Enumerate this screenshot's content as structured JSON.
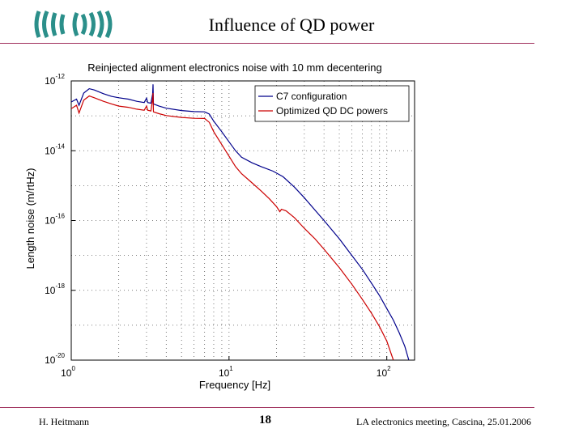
{
  "slide": {
    "title": "Influence of QD power",
    "footer_left": "H. Heitmann",
    "footer_page": "18",
    "footer_right": "LA electronics meeting, Cascina, 25.01.2006"
  },
  "logo": {
    "name": "ego-virgo-logo-icon",
    "color": "#2b8f8a"
  },
  "chart_data": {
    "type": "line",
    "title": "Reinjected alignment electronics noise with 10 mm decentering",
    "xlabel": "Frequency [Hz]",
    "ylabel": "Length noise (m/rtHz)",
    "xscale": "log",
    "yscale": "log",
    "xlim": [
      1,
      150
    ],
    "ylim": [
      1e-20,
      1e-12
    ],
    "xticks": [
      {
        "value": 1,
        "base": "10",
        "exp": "0"
      },
      {
        "value": 10,
        "base": "10",
        "exp": "1"
      },
      {
        "value": 100,
        "base": "10",
        "exp": "2"
      }
    ],
    "yticks": [
      {
        "value": 1e-12,
        "base": "10",
        "exp": "-12"
      },
      {
        "value": 1e-14,
        "base": "10",
        "exp": "-14"
      },
      {
        "value": 1e-16,
        "base": "10",
        "exp": "-16"
      },
      {
        "value": 1e-18,
        "base": "10",
        "exp": "-18"
      },
      {
        "value": 1e-20,
        "base": "10",
        "exp": "-20"
      }
    ],
    "grid": true,
    "legend_position": "top-right",
    "series": [
      {
        "name": "C7 configuration",
        "color": "#00008b",
        "points": [
          [
            1.0,
            2.5e-13
          ],
          [
            1.08,
            3e-13
          ],
          [
            1.12,
            2e-13
          ],
          [
            1.2,
            4.5e-13
          ],
          [
            1.3,
            6e-13
          ],
          [
            1.4,
            5.5e-13
          ],
          [
            1.6,
            4.3e-13
          ],
          [
            1.8,
            3.6e-13
          ],
          [
            2.0,
            3.3e-13
          ],
          [
            2.3,
            3e-13
          ],
          [
            2.6,
            2.6e-13
          ],
          [
            2.9,
            2.4e-13
          ],
          [
            3.0,
            3.2e-13
          ],
          [
            3.05,
            2.4e-13
          ],
          [
            3.2,
            2.3e-13
          ],
          [
            3.28,
            4.2e-13
          ],
          [
            3.3,
            8e-13
          ],
          [
            3.32,
            2.2e-13
          ],
          [
            3.6,
            1.9e-13
          ],
          [
            4.0,
            1.65e-13
          ],
          [
            5.0,
            1.42e-13
          ],
          [
            6.0,
            1.32e-13
          ],
          [
            7.0,
            1.3e-13
          ],
          [
            7.5,
            1.12e-13
          ],
          [
            8.0,
            7e-14
          ],
          [
            9.0,
            3.5e-14
          ],
          [
            10.0,
            1.8e-14
          ],
          [
            11.0,
            1e-14
          ],
          [
            12.0,
            6.5e-15
          ],
          [
            14.0,
            4.5e-15
          ],
          [
            16.0,
            3.5e-15
          ],
          [
            19.0,
            2.6e-15
          ],
          [
            22.0,
            1.8e-15
          ],
          [
            26.0,
            9e-16
          ],
          [
            30.0,
            4.5e-16
          ],
          [
            35.0,
            2e-16
          ],
          [
            40.0,
            1e-16
          ],
          [
            50.0,
            3e-17
          ],
          [
            60.0,
            1e-17
          ],
          [
            70.0,
            4e-18
          ],
          [
            80.0,
            1.6e-18
          ],
          [
            90.0,
            7e-19
          ],
          [
            100.0,
            3e-19
          ],
          [
            110.0,
            1.4e-19
          ],
          [
            120.0,
            6e-20
          ],
          [
            130.0,
            2.5e-20
          ],
          [
            138.0,
            1e-20
          ]
        ]
      },
      {
        "name": "Optimized QD DC powers",
        "color": "#cc0000",
        "points": [
          [
            1.0,
            1.6e-13
          ],
          [
            1.08,
            2e-13
          ],
          [
            1.12,
            1.2e-13
          ],
          [
            1.2,
            2.8e-13
          ],
          [
            1.3,
            3.7e-13
          ],
          [
            1.4,
            3.3e-13
          ],
          [
            1.6,
            2.6e-13
          ],
          [
            1.8,
            2.2e-13
          ],
          [
            2.0,
            1.9e-13
          ],
          [
            2.3,
            1.75e-13
          ],
          [
            2.6,
            1.55e-13
          ],
          [
            2.9,
            1.45e-13
          ],
          [
            3.0,
            1.9e-13
          ],
          [
            3.05,
            1.45e-13
          ],
          [
            3.2,
            1.38e-13
          ],
          [
            3.28,
            3e-13
          ],
          [
            3.3,
            4.5e-13
          ],
          [
            3.32,
            1.3e-13
          ],
          [
            3.6,
            1.15e-13
          ],
          [
            4.0,
            1.02e-13
          ],
          [
            5.0,
            9e-14
          ],
          [
            6.0,
            8.5e-14
          ],
          [
            7.0,
            8.4e-14
          ],
          [
            7.5,
            6.5e-14
          ],
          [
            8.0,
            3.5e-14
          ],
          [
            9.0,
            1.5e-14
          ],
          [
            10.0,
            7e-15
          ],
          [
            11.0,
            3.5e-15
          ],
          [
            12.0,
            2.2e-15
          ],
          [
            14.0,
            1.2e-15
          ],
          [
            16.0,
            7e-16
          ],
          [
            18.0,
            4.2e-16
          ],
          [
            20.0,
            2.5e-16
          ],
          [
            21.0,
            1.8e-16
          ],
          [
            21.5,
            2.1e-16
          ],
          [
            23.0,
            1.9e-16
          ],
          [
            26.0,
            1.2e-16
          ],
          [
            30.0,
            6e-17
          ],
          [
            35.0,
            3e-17
          ],
          [
            40.0,
            1.5e-17
          ],
          [
            50.0,
            4.5e-18
          ],
          [
            60.0,
            1.5e-18
          ],
          [
            70.0,
            5.5e-19
          ],
          [
            80.0,
            2.2e-19
          ],
          [
            90.0,
            9e-20
          ],
          [
            100.0,
            3.5e-20
          ],
          [
            110.0,
            1e-20
          ]
        ]
      }
    ]
  }
}
